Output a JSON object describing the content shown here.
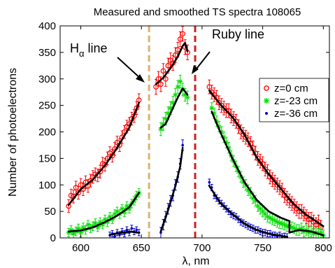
{
  "chart_data": {
    "type": "scatter",
    "title": "Measured and smoothed TS spectra 108065",
    "xlabel": "λ, nm",
    "ylabel": "Number of photoelectrons",
    "xlim": [
      583,
      805
    ],
    "ylim": [
      0,
      400
    ],
    "xticks": [
      600,
      650,
      700,
      750,
      800
    ],
    "yticks": [
      0,
      50,
      100,
      150,
      200,
      250,
      300,
      350,
      400
    ],
    "grid": false,
    "legend_position": "right",
    "annotations": [
      {
        "text": "H",
        "subscript": "α",
        "suffix": " line",
        "x": 655,
        "y": 325
      },
      {
        "text": "Ruby line",
        "x": 694,
        "y": 325
      }
    ],
    "vlines": [
      {
        "name": "H-alpha line",
        "x": 656.3,
        "color": "#d9b26f",
        "dash": true
      },
      {
        "name": "Ruby line",
        "x": 694.3,
        "color": "#cc2222",
        "dash": true
      }
    ],
    "series": [
      {
        "name": "z=0 cm",
        "color": "#ff0000",
        "marker": "circle",
        "segments": [
          {
            "x": [
              590,
              592,
              594,
              596,
              598,
              600,
              602,
              604,
              606,
              608,
              610,
              612,
              614,
              616,
              618,
              620,
              622,
              624,
              626,
              628,
              630,
              632,
              634,
              636,
              638,
              640,
              642,
              644,
              646,
              648
            ],
            "y": [
              60,
              80,
              78,
              95,
              85,
              100,
              92,
              105,
              98,
              108,
              115,
              120,
              118,
              125,
              140,
              138,
              150,
              160,
              155,
              168,
              180,
              175,
              190,
              200,
              210,
              215,
              225,
              230,
              245,
              260
            ],
            "err": 12
          },
          {
            "x": [
              662,
              664,
              666,
              668,
              670,
              672,
              674,
              676,
              678,
              680,
              682,
              684,
              686,
              688
            ],
            "y": [
              285,
              300,
              290,
              315,
              300,
              325,
              335,
              330,
              345,
              355,
              375,
              385,
              360,
              350
            ],
            "err": 14
          },
          {
            "x": [
              706,
              708,
              710,
              712,
              714,
              716,
              718,
              720,
              722,
              724,
              726,
              728,
              730,
              732,
              734,
              736,
              738,
              740,
              742,
              744,
              746,
              748,
              750,
              752,
              754,
              756,
              758,
              760,
              762,
              764,
              766,
              768,
              770,
              772,
              774,
              776,
              778,
              780,
              782,
              784,
              786,
              788,
              790,
              792,
              794,
              796,
              798
            ],
            "y": [
              285,
              275,
              270,
              265,
              255,
              250,
              245,
              240,
              240,
              230,
              225,
              220,
              210,
              200,
              195,
              190,
              185,
              178,
              170,
              160,
              150,
              145,
              140,
              130,
              125,
              115,
              110,
              105,
              100,
              95,
              90,
              80,
              75,
              70,
              65,
              60,
              55,
              50,
              50,
              45,
              40,
              35,
              35,
              30,
              25,
              30,
              20
            ],
            "err": 13
          }
        ],
        "smooth": [
          [
            [
              590,
              62
            ],
            [
              600,
              92
            ],
            [
              610,
              110
            ],
            [
              620,
              137
            ],
            [
              630,
              170
            ],
            [
              640,
              208
            ],
            [
              648,
              255
            ]
          ],
          [
            [
              662,
              290
            ],
            [
              668,
              302
            ],
            [
              674,
              320
            ],
            [
              680,
              342
            ],
            [
              684,
              362
            ],
            [
              686,
              368
            ],
            [
              688,
              352
            ]
          ],
          [
            [
              706,
              278
            ],
            [
              715,
              252
            ],
            [
              725,
              228
            ],
            [
              735,
              195
            ],
            [
              745,
              152
            ],
            [
              755,
              120
            ],
            [
              765,
              93
            ],
            [
              775,
              65
            ],
            [
              785,
              45
            ],
            [
              795,
              30
            ],
            [
              800,
              22
            ]
          ]
        ]
      },
      {
        "name": "z=-23 cm",
        "color": "#00dd00",
        "marker": "asterisk",
        "segments": [
          {
            "x": [
              590,
              592,
              594,
              596,
              598,
              600,
              602,
              604,
              606,
              608,
              610,
              612,
              614,
              616,
              618,
              620,
              622,
              624,
              626,
              628,
              630,
              632,
              634,
              636,
              638,
              640,
              642,
              644,
              646,
              648
            ],
            "y": [
              10,
              15,
              8,
              12,
              18,
              10,
              20,
              15,
              25,
              18,
              22,
              28,
              20,
              30,
              25,
              35,
              30,
              40,
              35,
              45,
              50,
              45,
              55,
              48,
              60,
              55,
              65,
              70,
              80,
              85
            ],
            "err": 8
          },
          {
            "x": [
              666,
              668,
              670,
              672,
              674,
              676,
              678,
              680,
              682,
              684,
              686,
              688
            ],
            "y": [
              205,
              215,
              225,
              235,
              245,
              255,
              270,
              285,
              295,
              280,
              270,
              265
            ],
            "err": 12
          },
          {
            "x": [
              708,
              710,
              712,
              714,
              716,
              718,
              720,
              722,
              724,
              726,
              728,
              730,
              732,
              734,
              736,
              738,
              740,
              742,
              744,
              746,
              748,
              750,
              752,
              754,
              756,
              758,
              760,
              762,
              764,
              766,
              768,
              770,
              772,
              774,
              776,
              778,
              780,
              782,
              784,
              786,
              788,
              790,
              792,
              794,
              796,
              798,
              800
            ],
            "y": [
              245,
              235,
              220,
              210,
              200,
              190,
              180,
              170,
              155,
              145,
              135,
              125,
              115,
              105,
              100,
              90,
              85,
              75,
              70,
              60,
              55,
              50,
              45,
              40,
              38,
              35,
              33,
              30,
              28,
              27,
              25,
              22,
              22,
              20,
              18,
              15,
              15,
              18,
              12,
              15,
              10,
              12,
              8,
              10,
              8,
              10,
              5
            ],
            "err": 10
          }
        ],
        "smooth": [
          [
            [
              590,
              12
            ],
            [
              600,
              14
            ],
            [
              610,
              20
            ],
            [
              620,
              30
            ],
            [
              630,
              42
            ],
            [
              640,
              58
            ],
            [
              648,
              85
            ]
          ],
          [
            [
              666,
              208
            ],
            [
              670,
              215
            ],
            [
              675,
              240
            ],
            [
              680,
              265
            ],
            [
              684,
              282
            ],
            [
              688,
              270
            ]
          ],
          [
            [
              708,
              238
            ],
            [
              715,
              200
            ],
            [
              725,
              150
            ],
            [
              735,
              105
            ],
            [
              745,
              72
            ],
            [
              755,
              50
            ],
            [
              765,
              38
            ],
            [
              772,
              32
            ],
            [
              772,
              10
            ],
            [
              780,
              15
            ],
            [
              790,
              12
            ],
            [
              800,
              5
            ]
          ]
        ]
      },
      {
        "name": "z=-36 cm",
        "color": "#0000cc",
        "marker": "point",
        "segments": [
          {
            "x": [
              624,
              626,
              628,
              630,
              632,
              634,
              636,
              638,
              640,
              642,
              644,
              646,
              648
            ],
            "y": [
              5,
              8,
              3,
              10,
              6,
              12,
              8,
              15,
              10,
              18,
              12,
              15,
              10
            ],
            "err": 6
          },
          {
            "x": [
              666,
              668,
              670,
              672,
              674,
              676,
              678,
              680,
              682,
              684
            ],
            "y": [
              10,
              25,
              40,
              55,
              70,
              80,
              100,
              115,
              140,
              175
            ],
            "err": 10
          },
          {
            "x": [
              706,
              708,
              710,
              712,
              714,
              716,
              718,
              720,
              722,
              724,
              726,
              728,
              730,
              732,
              734,
              736,
              738,
              740,
              742,
              744,
              746,
              748,
              750,
              752,
              754,
              756,
              758,
              760,
              762,
              764,
              766,
              768,
              770
            ],
            "y": [
              105,
              95,
              80,
              75,
              70,
              65,
              60,
              55,
              50,
              45,
              42,
              40,
              35,
              30,
              28,
              25,
              22,
              20,
              18,
              15,
              15,
              12,
              10,
              10,
              8,
              8,
              5,
              5,
              3,
              5,
              2,
              3,
              2
            ],
            "err": 6
          }
        ],
        "smooth": [
          [
            [
              624,
              6
            ],
            [
              632,
              9
            ],
            [
              640,
              12
            ],
            [
              648,
              10
            ]
          ],
          [
            [
              666,
              12
            ],
            [
              672,
              52
            ],
            [
              678,
              98
            ],
            [
              682,
              135
            ],
            [
              684,
              170
            ]
          ],
          [
            [
              706,
              98
            ],
            [
              715,
              66
            ],
            [
              725,
              45
            ],
            [
              735,
              27
            ],
            [
              745,
              15
            ],
            [
              755,
              8
            ],
            [
              765,
              4
            ],
            [
              770,
              2
            ]
          ]
        ]
      }
    ]
  }
}
